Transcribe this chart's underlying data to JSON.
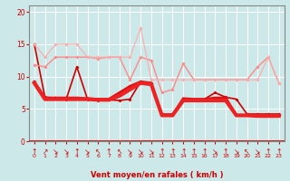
{
  "x": [
    0,
    1,
    2,
    3,
    4,
    5,
    6,
    7,
    8,
    9,
    10,
    11,
    12,
    13,
    14,
    15,
    16,
    17,
    18,
    19,
    20,
    21,
    22,
    23
  ],
  "series": [
    {
      "y": [
        15.0,
        6.8,
        6.7,
        6.5,
        11.5,
        6.5,
        6.3,
        6.4,
        6.3,
        6.5,
        9.2,
        9.0,
        4.2,
        4.2,
        6.5,
        6.5,
        6.5,
        7.5,
        6.8,
        6.5,
        4.2,
        4.2,
        4.2,
        4.2
      ],
      "color": "#cc0000",
      "lw": 1.2,
      "marker": "D",
      "ms": 2.0,
      "alpha": 1.0
    },
    {
      "y": [
        9.2,
        6.7,
        6.7,
        6.7,
        6.7,
        6.6,
        6.5,
        6.5,
        7.5,
        8.5,
        9.2,
        9.0,
        4.0,
        4.0,
        6.6,
        6.5,
        6.5,
        6.7,
        6.7,
        4.0,
        4.0,
        4.0,
        4.0,
        4.0
      ],
      "color": "#dd1111",
      "lw": 2.0,
      "marker": "D",
      "ms": 2.0,
      "alpha": 1.0
    },
    {
      "y": [
        9.0,
        6.5,
        6.5,
        6.5,
        6.5,
        6.5,
        6.4,
        6.4,
        7.0,
        8.0,
        9.0,
        8.8,
        4.0,
        4.0,
        6.3,
        6.3,
        6.3,
        6.3,
        6.3,
        4.0,
        4.0,
        3.9,
        3.9,
        3.9
      ],
      "color": "#ee2222",
      "lw": 3.0,
      "marker": null,
      "ms": 0,
      "alpha": 1.0
    },
    {
      "y": [
        11.8,
        11.5,
        13.0,
        13.0,
        13.0,
        13.0,
        12.8,
        13.0,
        13.0,
        9.5,
        13.0,
        12.5,
        7.5,
        8.0,
        12.0,
        9.5,
        9.5,
        9.5,
        9.5,
        9.5,
        9.5,
        11.5,
        13.0,
        9.0
      ],
      "color": "#ff8888",
      "lw": 1.0,
      "marker": "D",
      "ms": 2.0,
      "alpha": 1.0
    },
    {
      "y": [
        15.0,
        13.0,
        15.0,
        15.0,
        15.0,
        13.0,
        13.0,
        13.0,
        13.0,
        13.0,
        17.5,
        9.5,
        9.5,
        9.5,
        9.5,
        9.5,
        9.5,
        9.5,
        9.5,
        9.5,
        9.5,
        9.5,
        13.0,
        9.0
      ],
      "color": "#ffaaaa",
      "lw": 0.8,
      "marker": "D",
      "ms": 2.0,
      "alpha": 1.0
    }
  ],
  "arrows": [
    "↑",
    "↗",
    "↘",
    "↘",
    "↑",
    "↘",
    "↖",
    "↑",
    "↖",
    "↘",
    "↘",
    "↘",
    "↑",
    "↑",
    "↑",
    "↑",
    "↑",
    "↘",
    "↑",
    "↘",
    "↖",
    "↘",
    "↑",
    "↑"
  ],
  "xlabel": "Vent moyen/en rafales ( km/h )",
  "ylim": [
    0,
    21
  ],
  "xlim": [
    -0.5,
    23.5
  ],
  "yticks": [
    0,
    5,
    10,
    15,
    20
  ],
  "xticks": [
    0,
    1,
    2,
    3,
    4,
    5,
    6,
    7,
    8,
    9,
    10,
    11,
    12,
    13,
    14,
    15,
    16,
    17,
    18,
    19,
    20,
    21,
    22,
    23
  ],
  "bg_color": "#cce8e8",
  "grid_color": "#ffffff",
  "tick_color": "#cc0000",
  "label_color": "#cc0000",
  "spine_color": "#888888"
}
